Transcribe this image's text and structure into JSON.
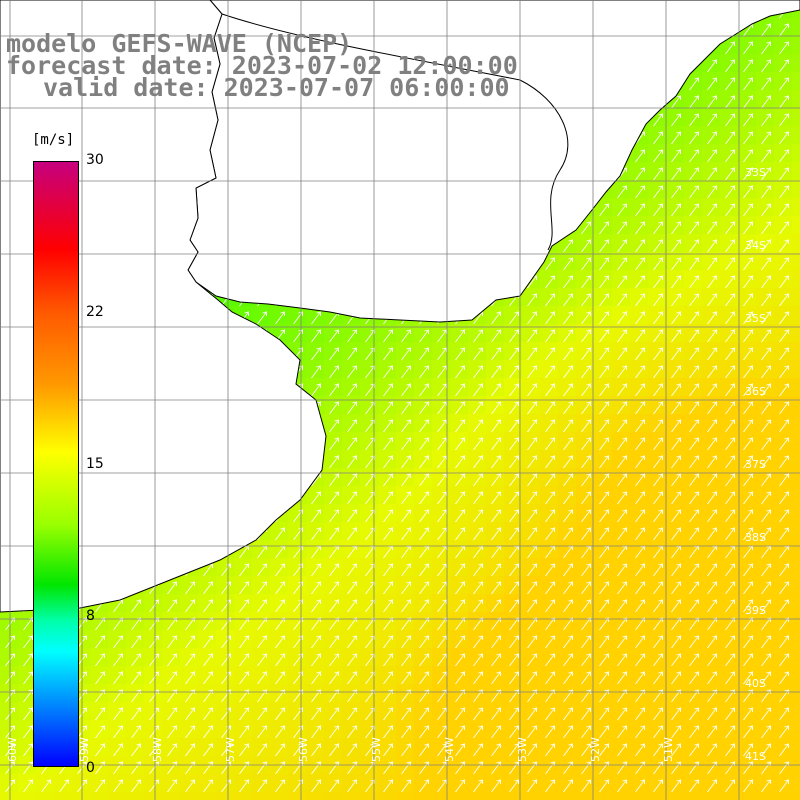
{
  "title": {
    "model": "modelo GEFS-WAVE (NCEP)",
    "forecast": "forecast date: 2023-07-02 12:00:00",
    "valid": "valid date: 2023-07-07 06:00:00"
  },
  "colorbar": {
    "unit": "[m/s]",
    "min": 0,
    "max": 30,
    "ticks": [
      "30",
      "22",
      "15",
      "8",
      "0"
    ],
    "colors": [
      "#c6007e",
      "#ff0000",
      "#ff9a00",
      "#ffff00",
      "#00e600",
      "#00ffff",
      "#0000ff"
    ]
  },
  "map": {
    "lat_labels": [
      "33S",
      "34S",
      "35S",
      "36S",
      "37S",
      "38S",
      "39S",
      "40S",
      "41S"
    ],
    "lon_labels": [
      "60W",
      "59W",
      "58W",
      "57W",
      "56W",
      "55W",
      "54W",
      "53W",
      "52W",
      "51W"
    ],
    "land_color": "#ffffff",
    "grid_color": "#808080",
    "arrow_color": "#ffffff"
  }
}
